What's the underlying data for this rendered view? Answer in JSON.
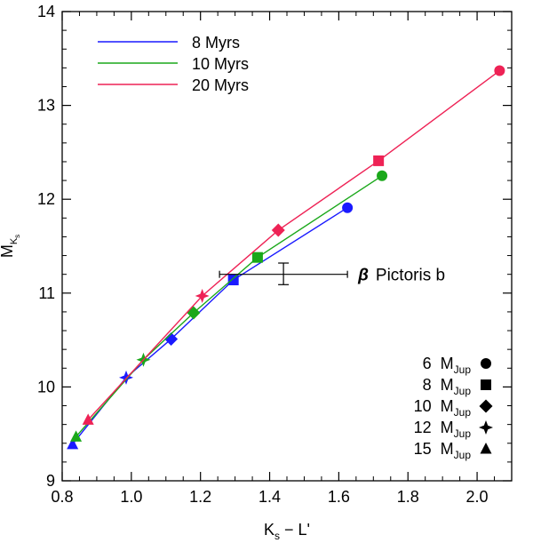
{
  "chart_data": {
    "type": "line",
    "title": "",
    "xlabel": "K",
    "xlabel_sub": "s",
    "xlabel_rest": " − L'",
    "ylabel": "M",
    "ylabel_sub": "K",
    "ylabel_subsub": "s",
    "xlim": [
      0.8,
      2.1
    ],
    "ylim": [
      9.0,
      14.0
    ],
    "xticks": [
      "0.8",
      "1.0",
      "1.2",
      "1.4",
      "1.6",
      "1.8",
      "2.0"
    ],
    "yticks": [
      "9",
      "10",
      "11",
      "12",
      "13",
      "14"
    ],
    "legend_position": "top-left",
    "series": [
      {
        "name": "8 Myrs",
        "color": "#1a1aff",
        "points": [
          {
            "x": 0.83,
            "y": 9.39,
            "marker": "triangle"
          },
          {
            "x": 0.985,
            "y": 10.1,
            "marker": "star"
          },
          {
            "x": 1.115,
            "y": 10.51,
            "marker": "diamond"
          },
          {
            "x": 1.295,
            "y": 11.14,
            "marker": "square"
          },
          {
            "x": 1.625,
            "y": 11.91,
            "marker": "circle"
          }
        ]
      },
      {
        "name": "10 Myrs",
        "color": "#1aa81a",
        "points": [
          {
            "x": 0.84,
            "y": 9.47,
            "marker": "triangle"
          },
          {
            "x": 1.035,
            "y": 10.29,
            "marker": "star"
          },
          {
            "x": 1.18,
            "y": 10.79,
            "marker": "diamond"
          },
          {
            "x": 1.365,
            "y": 11.38,
            "marker": "square"
          },
          {
            "x": 1.725,
            "y": 12.25,
            "marker": "circle"
          }
        ]
      },
      {
        "name": "20 Myrs",
        "color": "#ee2255",
        "points": [
          {
            "x": 0.875,
            "y": 9.65,
            "marker": "triangle"
          },
          {
            "x": 1.205,
            "y": 10.97,
            "marker": "star"
          },
          {
            "x": 1.425,
            "y": 11.67,
            "marker": "diamond"
          },
          {
            "x": 1.715,
            "y": 12.41,
            "marker": "square"
          },
          {
            "x": 2.065,
            "y": 13.37,
            "marker": "circle"
          }
        ]
      }
    ],
    "error_point": {
      "label": "Pictoris b",
      "label_greek": "β",
      "x": 1.44,
      "y": 11.2,
      "x_err": [
        1.255,
        1.625
      ],
      "y_err": [
        11.09,
        11.32
      ]
    },
    "marker_key": [
      {
        "num": "6",
        "unit": "M",
        "sub": "Jup",
        "marker": "circle"
      },
      {
        "num": "8",
        "unit": "M",
        "sub": "Jup",
        "marker": "square"
      },
      {
        "num": "10",
        "unit": "M",
        "sub": "Jup",
        "marker": "diamond"
      },
      {
        "num": "12",
        "unit": "M",
        "sub": "Jup",
        "marker": "star"
      },
      {
        "num": "15",
        "unit": "M",
        "sub": "Jup",
        "marker": "triangle"
      }
    ]
  }
}
